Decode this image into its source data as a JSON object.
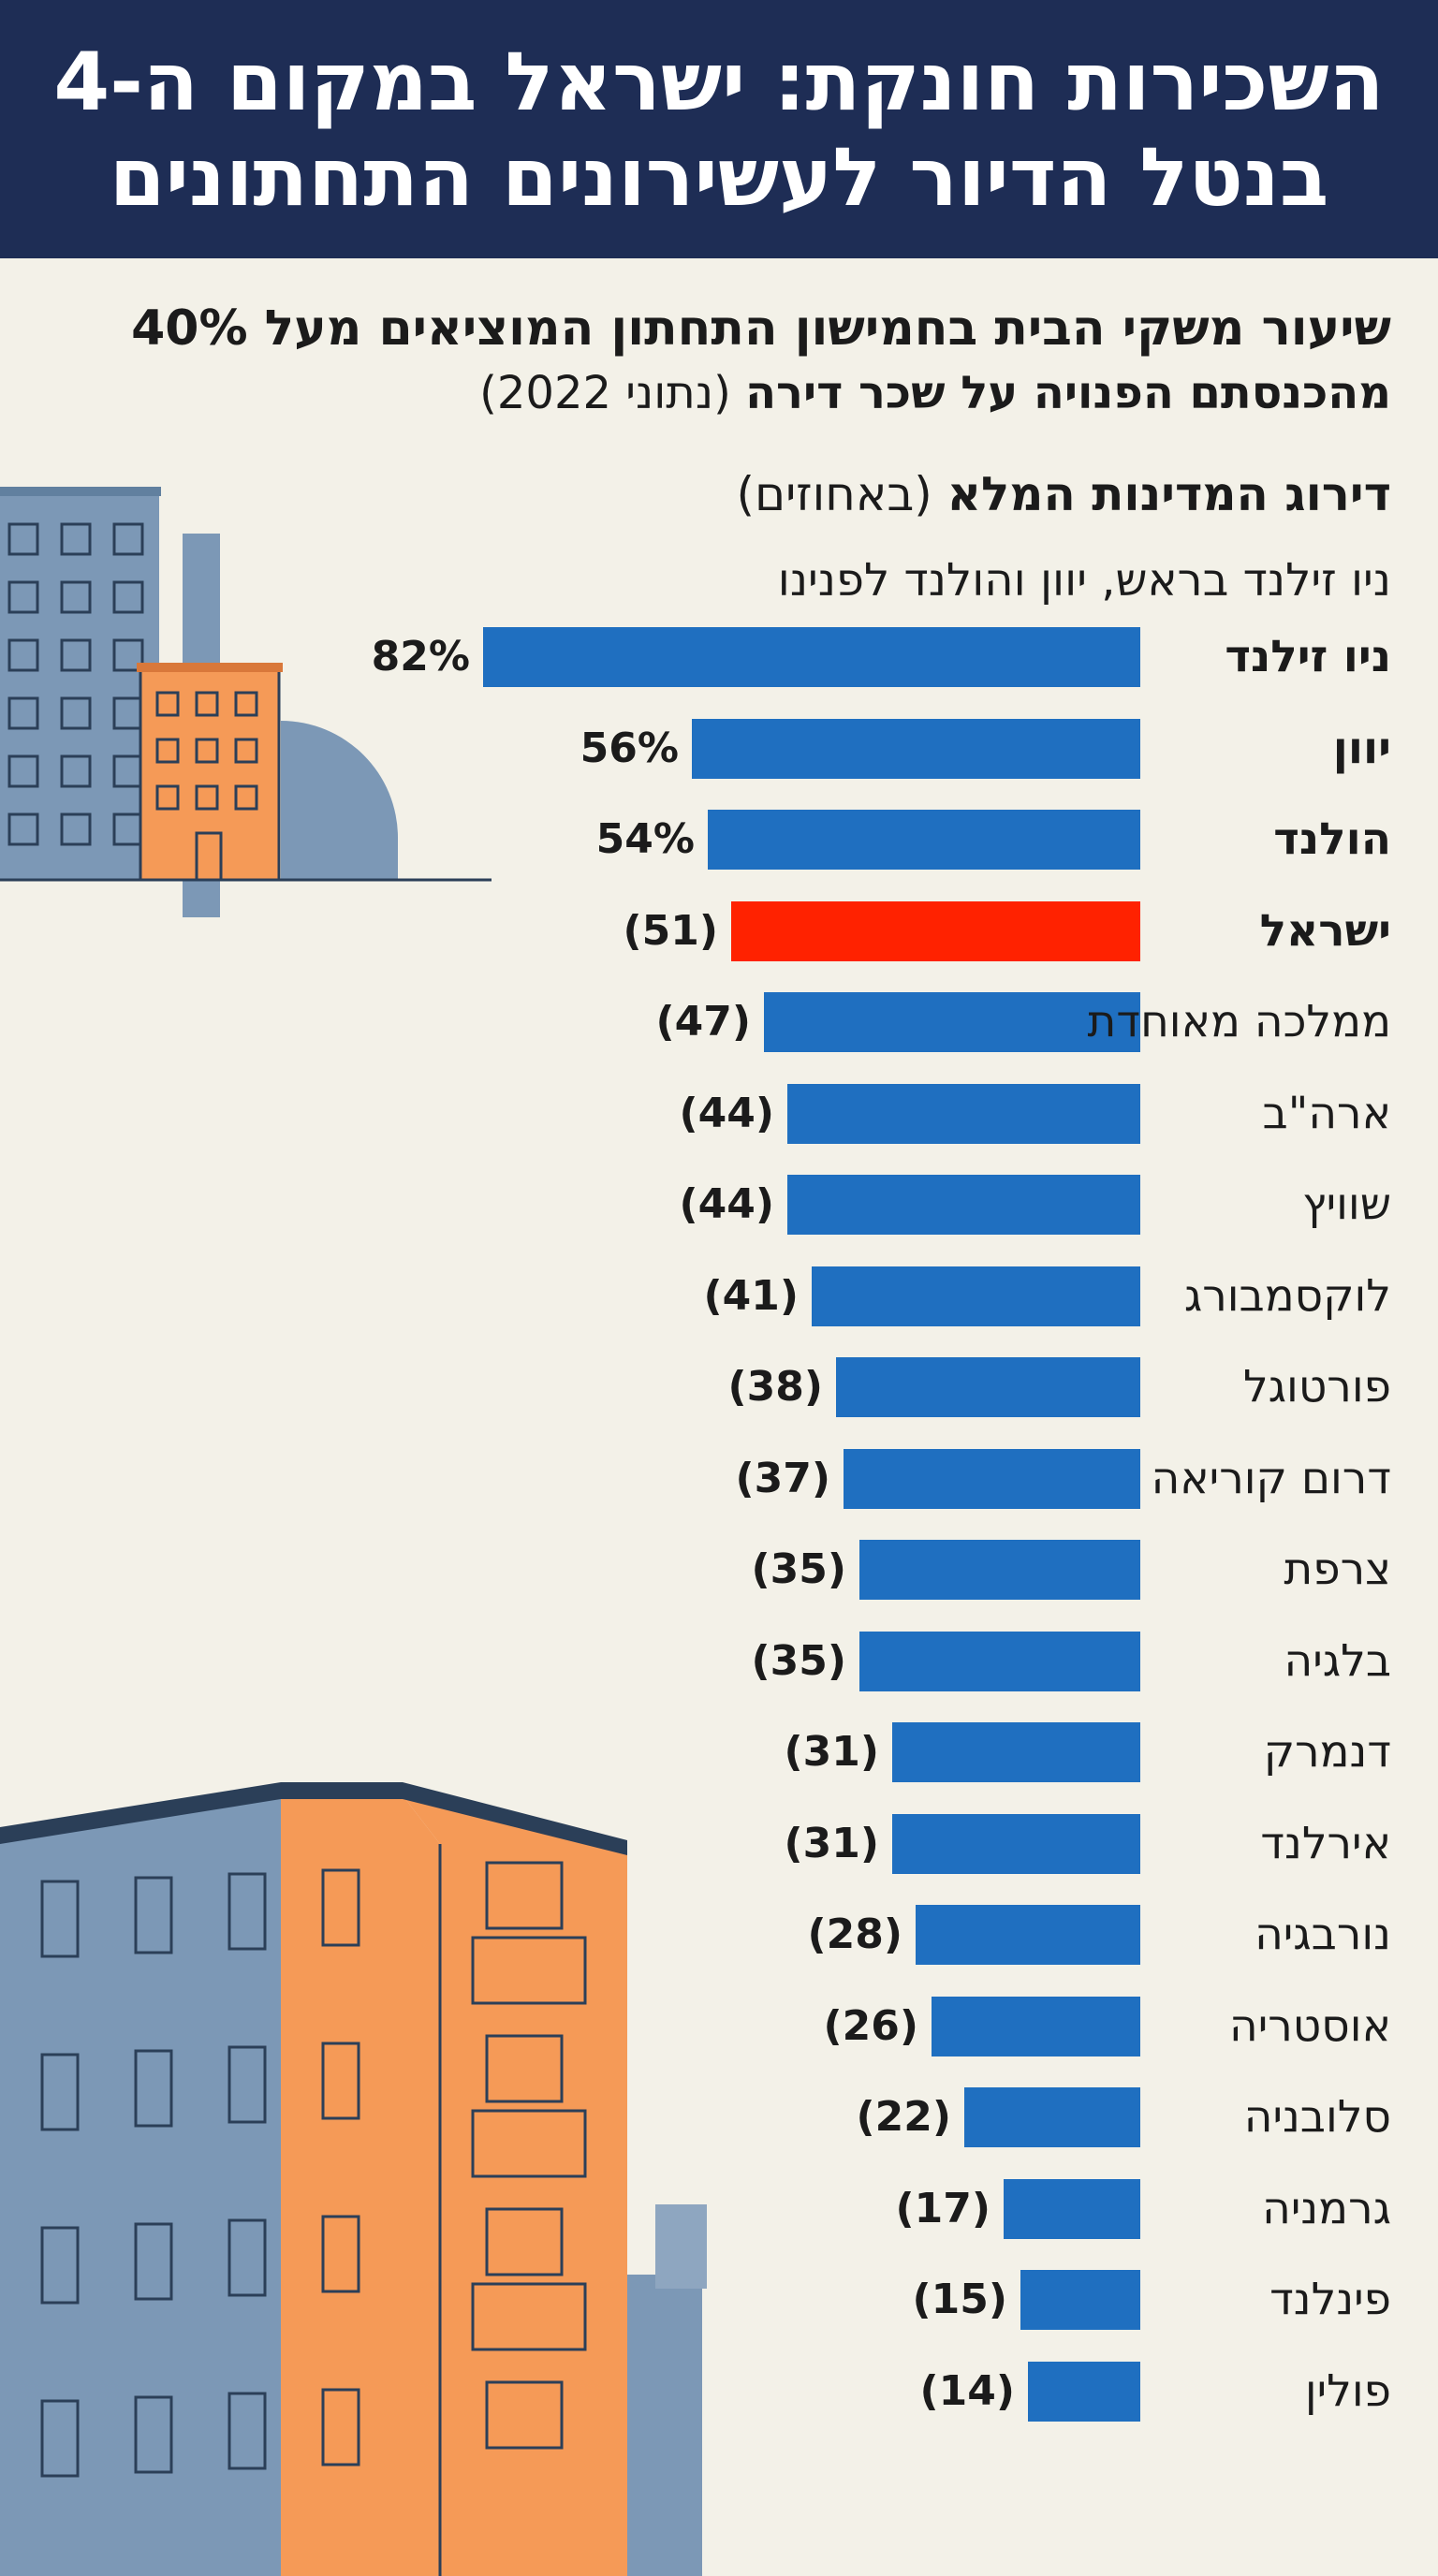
{
  "header": {
    "title_line1": "השכירות חונקת: ישראל במקום ה-4",
    "title_line2": "בנטל הדיור לעשירונים התחתונים"
  },
  "subtitle": {
    "line1": "שיעור משקי הבית בחמישון התחתון המוציאים מעל 40%",
    "line2_bold": "מהכנסתם הפנויה על שכר דירה",
    "line2_normal": "(נתוני 2022)"
  },
  "ranking": {
    "heading_bold": "דירוג המדינות המלא",
    "heading_normal": "(באחוזים)",
    "note": "ניו זילנד בראש, יוון והולנד לפנינו"
  },
  "colors": {
    "bar": "#1f6fc0",
    "highlight": "#ff2200",
    "header_bg": "#1e2d55",
    "building_blue": "#7c98b6",
    "building_orange": "#f59a57"
  },
  "chart_data": {
    "type": "bar",
    "orientation": "horizontal",
    "unit": "%",
    "xlim": [
      0,
      82
    ],
    "categories": [
      "ניו זילנד",
      "יוון",
      "הולנד",
      "ישראל",
      "ממלכה מאוחדת",
      "ארה\"ב",
      "שוויץ",
      "לוקסמבורג",
      "פורטוגל",
      "דרום קוריאה",
      "צרפת",
      "בלגיה",
      "דנמרק",
      "אירלנד",
      "נורבגיה",
      "אוסטריה",
      "סלובניה",
      "גרמניה",
      "פינלנד",
      "פולין"
    ],
    "values": [
      82,
      56,
      54,
      51,
      47,
      44,
      44,
      41,
      38,
      37,
      35,
      35,
      31,
      31,
      28,
      26,
      22,
      17,
      15,
      14
    ],
    "labels": [
      "82%",
      "56%",
      "54%",
      "(51)",
      "(47)",
      "(44)",
      "(44)",
      "(41)",
      "(38)",
      "(37)",
      "(35)",
      "(35)",
      "(31)",
      "(31)",
      "(28)",
      "(26)",
      "(22)",
      "(17)",
      "(15)",
      "(14)"
    ],
    "bold": [
      true,
      true,
      true,
      true,
      false,
      false,
      false,
      false,
      false,
      false,
      false,
      false,
      false,
      false,
      false,
      false,
      false,
      false,
      false,
      false
    ],
    "highlight_index": 3
  }
}
